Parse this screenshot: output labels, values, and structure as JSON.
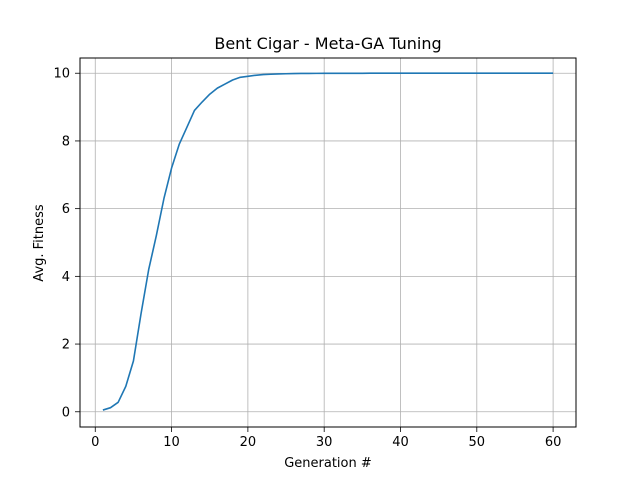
{
  "chart_data": {
    "type": "line",
    "title": "Bent Cigar - Meta-GA Tuning",
    "xlabel": "Generation #",
    "ylabel": "Avg. Fitness",
    "xlim": [
      -2,
      63
    ],
    "ylim": [
      -0.45,
      10.45
    ],
    "xticks": [
      0,
      10,
      20,
      30,
      40,
      50,
      60
    ],
    "yticks": [
      0,
      2,
      4,
      6,
      8,
      10
    ],
    "grid": true,
    "series": [
      {
        "color": "#1f77b4",
        "x": [
          1,
          2,
          3,
          4,
          5,
          6,
          7,
          8,
          9,
          10,
          11,
          12,
          13,
          14,
          15,
          16,
          17,
          18,
          19,
          20,
          21,
          22,
          23,
          24,
          25,
          26,
          27,
          28,
          29,
          30,
          31,
          32,
          33,
          34,
          35,
          36,
          37,
          38,
          39,
          40,
          41,
          42,
          43,
          44,
          45,
          46,
          47,
          48,
          49,
          50,
          51,
          52,
          53,
          54,
          55,
          56,
          57,
          58,
          59,
          60
        ],
        "values": [
          0.05,
          0.12,
          0.28,
          0.75,
          1.5,
          2.9,
          4.2,
          5.2,
          6.3,
          7.2,
          7.9,
          8.4,
          8.9,
          9.15,
          9.38,
          9.56,
          9.68,
          9.8,
          9.88,
          9.91,
          9.94,
          9.96,
          9.97,
          9.98,
          9.985,
          9.99,
          9.993,
          9.995,
          9.996,
          9.997,
          9.998,
          9.998,
          9.999,
          9.999,
          9.999,
          10,
          10,
          10,
          10,
          10,
          10,
          10,
          10,
          10,
          10,
          10,
          10,
          10,
          10,
          10,
          10,
          10,
          10,
          10,
          10,
          10,
          10,
          10,
          10,
          10
        ]
      }
    ]
  }
}
